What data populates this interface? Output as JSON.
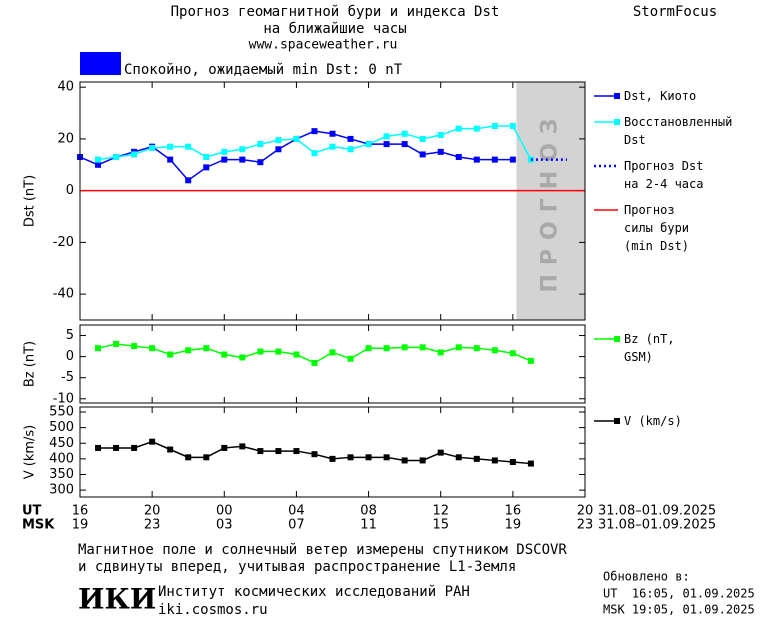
{
  "header": {
    "title": "Прогноз геомагнитной бури и индекса Dst",
    "subtitle": "на ближайшие часы",
    "url": "www.spaceweather.ru",
    "brand": "StormFocus"
  },
  "status": {
    "text": "Спокойно, ожидаемый min Dst: 0 nT",
    "color": "#0000ff"
  },
  "chart_data": [
    {
      "type": "line",
      "ylabel": "Dst (nT)",
      "xlim": [
        0,
        28
      ],
      "ylim": [
        -50,
        42
      ],
      "yticks": [
        40,
        20,
        0,
        -20,
        -40
      ],
      "xticks": [
        0,
        4,
        8,
        12,
        16,
        20,
        24,
        28
      ],
      "forecast_band": {
        "xlim": [
          24.2,
          28
        ],
        "label": "ПРОГНОЗ",
        "color": "#d3d3d3"
      },
      "series": [
        {
          "name": "Dst, Киото",
          "color": "#0000ff",
          "line": "solid",
          "marker": "square",
          "x": [
            0,
            1,
            2,
            3,
            4,
            5,
            6,
            7,
            8,
            9,
            10,
            11,
            12,
            13,
            14,
            15,
            16,
            17,
            18,
            19,
            20,
            21,
            22,
            23,
            24
          ],
          "values": [
            13,
            10,
            13,
            15,
            17,
            12,
            4,
            9,
            12,
            12,
            11,
            16,
            20,
            23,
            22,
            20,
            18,
            18,
            18,
            14,
            15,
            13,
            12,
            12,
            12
          ]
        },
        {
          "name": "Восстановленный Dst",
          "color": "#00ffff",
          "line": "solid",
          "marker": "square",
          "x": [
            1,
            2,
            3,
            4,
            5,
            6,
            7,
            8,
            9,
            10,
            11,
            12,
            13,
            14,
            15,
            16,
            17,
            18,
            19,
            20,
            21,
            22,
            23,
            24,
            25
          ],
          "values": [
            12,
            13,
            14,
            16.5,
            17,
            17,
            13,
            15,
            16,
            18,
            19.5,
            20,
            14.5,
            17,
            16,
            18,
            21,
            22,
            20,
            21.5,
            24,
            24,
            25,
            25,
            12
          ]
        },
        {
          "name": "Прогноз Dst на 2-4 часа",
          "color": "#0000ff",
          "line": "dotted",
          "marker": "none",
          "x": [
            25,
            27
          ],
          "values": [
            12,
            12
          ]
        },
        {
          "name": "Прогноз силы бури (min Dst)",
          "color": "#ff0000",
          "line": "solid",
          "marker": "none",
          "x": [
            0,
            28
          ],
          "values": [
            0,
            0
          ]
        }
      ]
    },
    {
      "type": "line",
      "ylabel": "Bz (nT)",
      "xlim": [
        0,
        28
      ],
      "ylim": [
        -11,
        7.5
      ],
      "yticks": [
        5,
        0,
        -5,
        -10
      ],
      "xticks": [
        0,
        4,
        8,
        12,
        16,
        20,
        24,
        28
      ],
      "series": [
        {
          "name": "Bz (nT, GSM)",
          "color": "#00ff00",
          "line": "solid",
          "marker": "square",
          "x": [
            1,
            2,
            3,
            4,
            5,
            6,
            7,
            8,
            9,
            10,
            11,
            12,
            13,
            14,
            15,
            16,
            17,
            18,
            19,
            20,
            21,
            22,
            23,
            24,
            25
          ],
          "values": [
            2,
            3,
            2.5,
            2,
            0.5,
            1.5,
            2,
            0.5,
            -0.2,
            1.2,
            1.2,
            0.5,
            -1.5,
            1,
            -0.5,
            2,
            2,
            2.2,
            2.2,
            1,
            2.2,
            2,
            1.5,
            0.8,
            -1
          ]
        }
      ]
    },
    {
      "type": "line",
      "ylabel": "V (km/s)",
      "xlim": [
        0,
        28
      ],
      "ylim": [
        278,
        566
      ],
      "yticks": [
        550,
        500,
        450,
        400,
        350,
        300
      ],
      "xlabel": "UT",
      "xlabel_date": "31.08–01.09.2025",
      "xticks": [
        {
          "value": 0,
          "label": "16"
        },
        {
          "value": 4,
          "label": "20"
        },
        {
          "value": 8,
          "label": "00"
        },
        {
          "value": 12,
          "label": "04"
        },
        {
          "value": 16,
          "label": "08"
        },
        {
          "value": 20,
          "label": "12"
        },
        {
          "value": 24,
          "label": "16"
        },
        {
          "value": 28,
          "label": "20"
        }
      ],
      "x2label": "MSK",
      "x2label_date": "31.08–01.09.2025",
      "x2ticks": [
        {
          "value": 0,
          "label": "19"
        },
        {
          "value": 4,
          "label": "23"
        },
        {
          "value": 8,
          "label": "03"
        },
        {
          "value": 12,
          "label": "07"
        },
        {
          "value": 16,
          "label": "11"
        },
        {
          "value": 20,
          "label": "15"
        },
        {
          "value": 24,
          "label": "19"
        },
        {
          "value": 28,
          "label": "23"
        }
      ],
      "series": [
        {
          "name": "V (km/s)",
          "color": "#000000",
          "line": "solid",
          "marker": "square",
          "x": [
            1,
            2,
            3,
            4,
            5,
            6,
            7,
            8,
            9,
            10,
            11,
            12,
            13,
            14,
            15,
            16,
            17,
            18,
            19,
            20,
            21,
            22,
            23,
            24,
            25
          ],
          "values": [
            435,
            435,
            435,
            455,
            430,
            405,
            405,
            435,
            440,
            425,
            425,
            425,
            415,
            400,
            405,
            405,
            405,
            395,
            395,
            420,
            405,
            400,
            395,
            390,
            385
          ]
        }
      ]
    }
  ],
  "footer": {
    "note_line1": "Магнитное поле и солнечный ветер измерены спутником DSCOVR",
    "note_line2": "и сдвинуты вперед, учитывая распространение L1-Земля",
    "logo": "ИКИ",
    "institute": "Институт космических исследований РАН",
    "site": "iki.cosmos.ru",
    "updated": "Обновлено в:",
    "updated_ut": "UT  16:05, 01.09.2025",
    "updated_msk": "MSK 19:05, 01.09.2025"
  }
}
